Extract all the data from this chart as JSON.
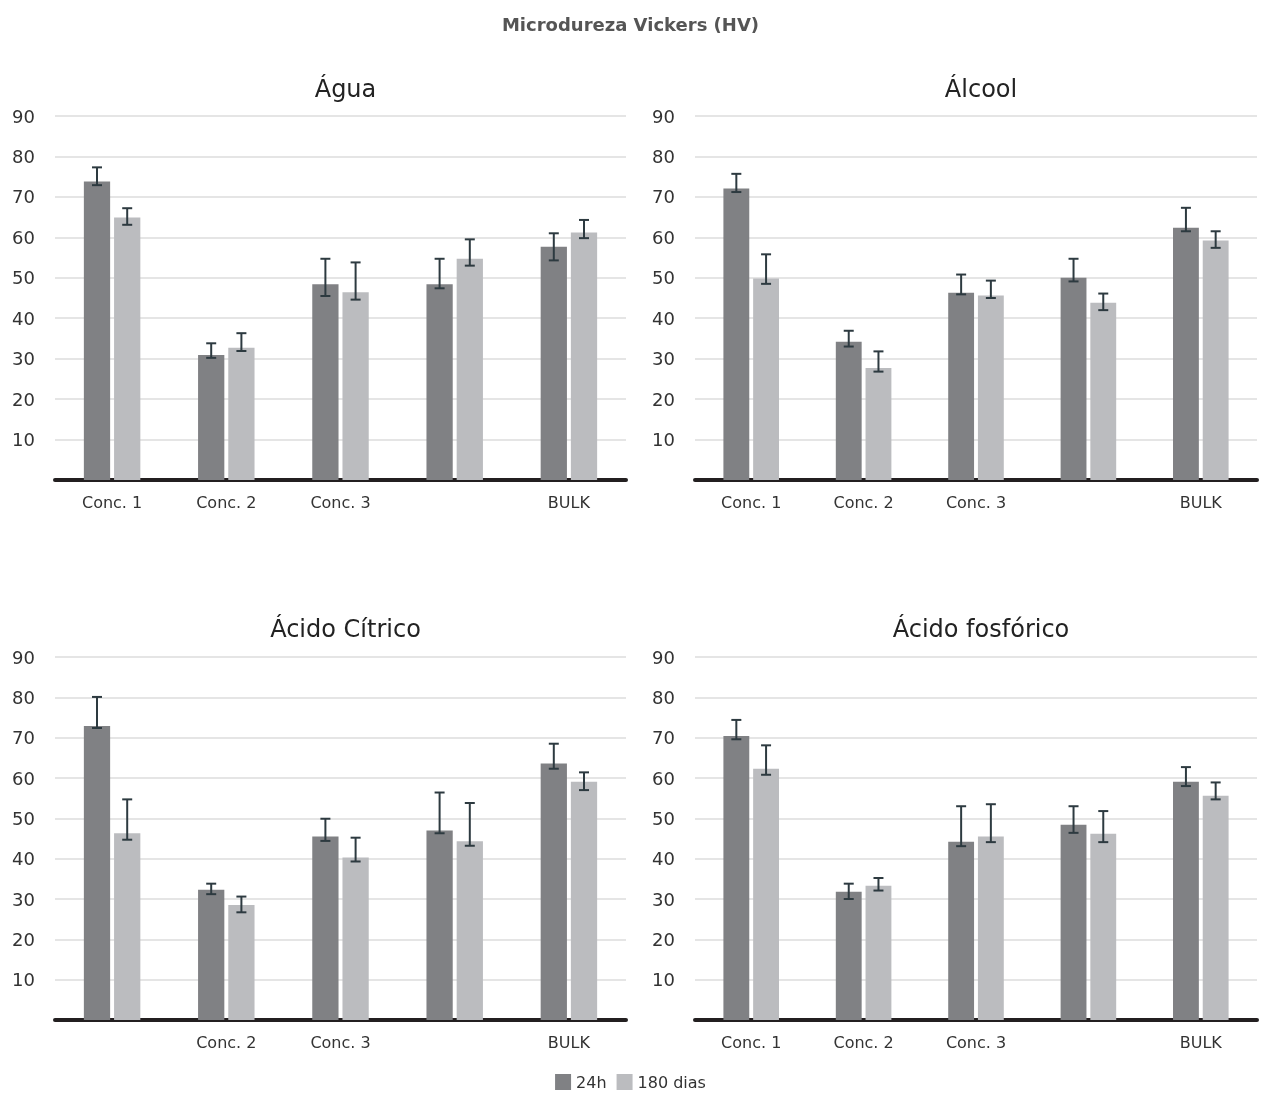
{
  "chart_data": [
    {
      "type": "bar",
      "title": "Água",
      "annotations": [
        "Microdureza Vickers (HV)"
      ],
      "categories": [
        "Conc. 1",
        "Conc. 2",
        "Conc. 3",
        null,
        "BULK"
      ],
      "ylim": [
        0,
        90
      ],
      "yticks": [
        10,
        20,
        30,
        40,
        50,
        60,
        70,
        80,
        90
      ],
      "grid": "y",
      "legend": false,
      "series": [
        {
          "color": "#808184",
          "values": [
            73.8,
            30.9,
            48.4,
            48.4,
            57.7
          ],
          "errors": [
            [
              72.9,
              77.3
            ],
            [
              30.2,
              33.8
            ],
            [
              45.5,
              54.7
            ],
            [
              47.4,
              54.7
            ],
            [
              54.3,
              61.0
            ]
          ]
        },
        {
          "color": "#bbbcbf",
          "values": [
            64.9,
            32.7,
            46.4,
            54.7,
            61.2
          ],
          "errors": [
            [
              63.1,
              67.2
            ],
            [
              31.9,
              36.3
            ],
            [
              44.6,
              53.8
            ],
            [
              53.0,
              59.5
            ],
            [
              59.8,
              64.3
            ]
          ]
        }
      ]
    },
    {
      "type": "bar",
      "title": "Álcool",
      "categories": [
        "Conc. 1",
        "Conc. 2",
        "Conc. 3",
        null,
        "BULK"
      ],
      "ylim": [
        0,
        90
      ],
      "yticks": [
        10,
        20,
        30,
        40,
        50,
        60,
        70,
        80,
        90
      ],
      "grid": "y",
      "legend": false,
      "series": [
        {
          "color": "#808184",
          "values": [
            72.1,
            34.2,
            46.3,
            50.0,
            62.4
          ],
          "errors": [
            [
              71.2,
              75.7
            ],
            [
              33.0,
              36.9
            ],
            [
              45.9,
              50.8
            ],
            [
              49.1,
              54.7
            ],
            [
              61.5,
              67.3
            ]
          ]
        },
        {
          "color": "#bbbcbf",
          "values": [
            49.8,
            27.7,
            45.6,
            43.8,
            59.2
          ],
          "errors": [
            [
              48.5,
              55.8
            ],
            [
              26.8,
              31.8
            ],
            [
              45.0,
              49.3
            ],
            [
              42.0,
              46.1
            ],
            [
              57.4,
              61.5
            ]
          ]
        }
      ]
    },
    {
      "type": "bar",
      "title": "Ácido Cítrico",
      "categories": [
        null,
        "Conc. 2",
        "Conc. 3",
        null,
        "BULK"
      ],
      "ylim": [
        0,
        90
      ],
      "yticks": [
        10,
        20,
        30,
        40,
        50,
        60,
        70,
        80,
        90
      ],
      "grid": "y",
      "legend": false,
      "series": [
        {
          "color": "#808184",
          "values": [
            72.9,
            32.3,
            45.5,
            47.0,
            63.6
          ],
          "errors": [
            [
              72.4,
              80.1
            ],
            [
              31.2,
              33.8
            ],
            [
              44.4,
              49.9
            ],
            [
              46.3,
              56.4
            ],
            [
              62.3,
              68.5
            ]
          ]
        },
        {
          "color": "#bbbcbf",
          "values": [
            46.3,
            28.5,
            40.3,
            44.3,
            59.1
          ],
          "errors": [
            [
              44.7,
              54.7
            ],
            [
              26.7,
              30.6
            ],
            [
              39.3,
              45.2
            ],
            [
              43.2,
              53.8
            ],
            [
              57.0,
              61.4
            ]
          ]
        }
      ]
    },
    {
      "type": "bar",
      "title": "Ácido fosfórico",
      "categories": [
        "Conc. 1",
        "Conc. 2",
        "Conc. 3",
        null,
        "BULK"
      ],
      "ylim": [
        0,
        90
      ],
      "yticks": [
        10,
        20,
        30,
        40,
        50,
        60,
        70,
        80,
        90
      ],
      "grid": "y",
      "legend": "bottom",
      "series": [
        {
          "name": "24h",
          "color": "#808184",
          "values": [
            70.4,
            31.8,
            44.2,
            48.4,
            59.1
          ],
          "errors": [
            [
              69.6,
              74.4
            ],
            [
              30.0,
              33.8
            ],
            [
              43.1,
              53.0
            ],
            [
              46.4,
              53.0
            ],
            [
              58.0,
              62.7
            ]
          ]
        },
        {
          "name": "180 dias",
          "color": "#bbbcbf",
          "values": [
            62.3,
            33.3,
            45.5,
            46.2,
            55.6
          ],
          "errors": [
            [
              60.8,
              68.1
            ],
            [
              32.1,
              35.2
            ],
            [
              44.1,
              53.5
            ],
            [
              44.1,
              51.8
            ],
            [
              54.7,
              58.9
            ]
          ]
        }
      ]
    }
  ]
}
